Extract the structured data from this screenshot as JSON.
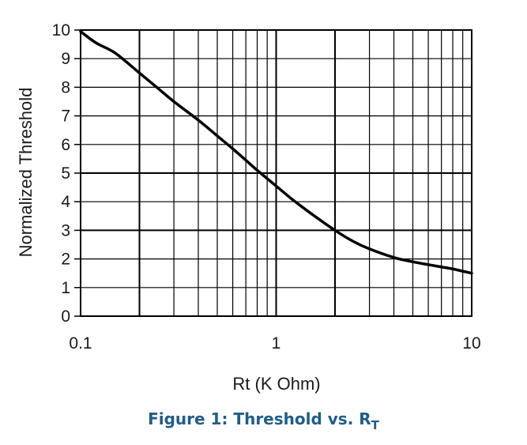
{
  "chart_data": {
    "type": "line",
    "xscale": "log",
    "xlim": [
      0.1,
      10
    ],
    "ylim": [
      0,
      10
    ],
    "grid": true,
    "xlabel": "Rt (K Ohm)",
    "ylabel": "Normalized Threshold",
    "xticks": [
      "0.1",
      "1",
      "10"
    ],
    "yticks": [
      "0",
      "1",
      "2",
      "3",
      "4",
      "5",
      "6",
      "7",
      "8",
      "9",
      "10"
    ],
    "series": [
      {
        "x": [
          0.1,
          0.12,
          0.15,
          0.2,
          0.25,
          0.3,
          0.4,
          0.5,
          0.6,
          0.7,
          0.8,
          1.0,
          1.2,
          1.5,
          2.0,
          2.5,
          3.0,
          4.0,
          5.0,
          6.0,
          7.0,
          8.0,
          10.0
        ],
        "values": [
          9.95,
          9.55,
          9.2,
          8.5,
          7.95,
          7.5,
          6.85,
          6.3,
          5.85,
          5.45,
          5.1,
          4.55,
          4.1,
          3.6,
          3.0,
          2.6,
          2.35,
          2.05,
          1.9,
          1.8,
          1.72,
          1.65,
          1.5
        ],
        "color": "#000000"
      }
    ],
    "caption": {
      "prefix": "Figure 1:  Threshold vs. R",
      "subscript": "T"
    }
  }
}
